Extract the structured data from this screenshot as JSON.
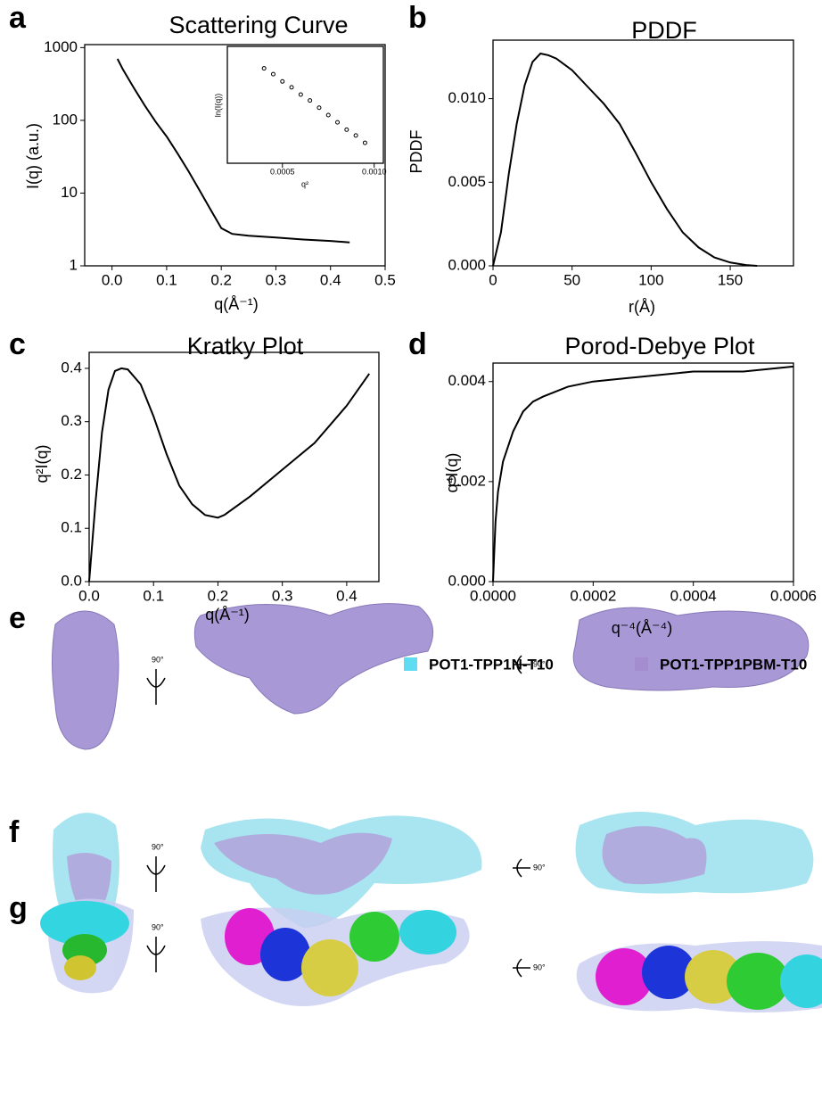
{
  "panel_labels": [
    "a",
    "b",
    "c",
    "d",
    "e",
    "f",
    "g"
  ],
  "chart_data": [
    {
      "type": "line",
      "title": "Scattering Curve",
      "x_label": "q(Å⁻¹)",
      "y_label": "I(q) (a.u.)",
      "log_y": true,
      "color": "#000000",
      "x": [
        0.01,
        0.02,
        0.04,
        0.06,
        0.08,
        0.1,
        0.12,
        0.14,
        0.16,
        0.18,
        0.2,
        0.22,
        0.25,
        0.3,
        0.35,
        0.4,
        0.435
      ],
      "values": [
        700,
        500,
        280,
        160,
        95,
        60,
        35,
        20,
        11,
        6,
        3.3,
        2.75,
        2.6,
        2.45,
        2.3,
        2.2,
        2.1
      ],
      "xlim": [
        -0.05,
        0.5
      ],
      "xticks": [
        {
          "value": 0,
          "label": "0.0"
        },
        0.1,
        0.2,
        0.3,
        0.4,
        0.5
      ],
      "ylim": [
        1,
        1100
      ],
      "yticks": [
        1,
        10,
        100,
        1000
      ],
      "inset": {
        "type": "scatter",
        "x_label": "q²",
        "y_label": "ln(I(q))",
        "x": [
          0.0004,
          0.00045,
          0.0005,
          0.00055,
          0.0006,
          0.00065,
          0.0007,
          0.00075,
          0.0008,
          0.00085,
          0.0009,
          0.00095
        ],
        "values": [
          6.55,
          6.51,
          6.46,
          6.42,
          6.37,
          6.33,
          6.28,
          6.23,
          6.18,
          6.13,
          6.09,
          6.04
        ],
        "xlim": [
          0.0002,
          0.00105
        ],
        "xticks": [
          0.0005,
          {
            "value": 0.001,
            "label": "0.0010"
          }
        ],
        "ylim": [
          5.9,
          6.7
        ]
      }
    },
    {
      "type": "line",
      "title": "PDDF",
      "x_label": "r(Å)",
      "y_label": "PDDF",
      "color": "#000000",
      "x": [
        0,
        5,
        10,
        15,
        20,
        25,
        30,
        35,
        40,
        50,
        60,
        70,
        80,
        90,
        100,
        110,
        120,
        130,
        140,
        150,
        160,
        167
      ],
      "values": [
        0,
        0.002,
        0.0055,
        0.0085,
        0.0108,
        0.0122,
        0.0127,
        0.0126,
        0.0124,
        0.0117,
        0.0107,
        0.0097,
        0.0085,
        0.0068,
        0.005,
        0.0034,
        0.002,
        0.0011,
        0.0005,
        0.0002,
        5e-05,
        0
      ],
      "xlim": [
        0,
        190
      ],
      "xticks": [
        0,
        50,
        100,
        150
      ],
      "ylim": [
        0,
        0.0135
      ],
      "yticks": [
        {
          "value": 0,
          "label": "0.000"
        },
        0.005,
        {
          "value": 0.01,
          "label": "0.010"
        }
      ]
    },
    {
      "type": "line",
      "title": "Kratky Plot",
      "x_label": "q(Å⁻¹)",
      "y_label": "q²I(q)",
      "color": "#000000",
      "x": [
        0,
        0.01,
        0.02,
        0.03,
        0.04,
        0.05,
        0.06,
        0.08,
        0.1,
        0.12,
        0.14,
        0.16,
        0.18,
        0.2,
        0.21,
        0.25,
        0.3,
        0.35,
        0.4,
        0.435
      ],
      "values": [
        0,
        0.15,
        0.28,
        0.36,
        0.395,
        0.4,
        0.398,
        0.37,
        0.31,
        0.24,
        0.18,
        0.145,
        0.125,
        0.12,
        0.125,
        0.16,
        0.21,
        0.26,
        0.33,
        0.39
      ],
      "xlim": [
        0,
        0.45
      ],
      "xticks": [
        {
          "value": 0,
          "label": "0.0"
        },
        0.1,
        0.2,
        0.3,
        0.4
      ],
      "ylim": [
        0,
        0.43
      ],
      "yticks": [
        {
          "value": 0,
          "label": "0.0"
        },
        0.1,
        0.2,
        0.3,
        0.4
      ]
    },
    {
      "type": "line",
      "title": "Porod-Debye Plot",
      "x_label": "q⁻⁴(Å⁻⁴)",
      "y_label": "q⁴I(q)",
      "color": "#000000",
      "x": [
        0,
        5e-06,
        1e-05,
        2e-05,
        4e-05,
        6e-05,
        8e-05,
        0.0001,
        0.00015,
        0.0002,
        0.00025,
        0.0003,
        0.0004,
        0.0005,
        0.0006
      ],
      "values": [
        0,
        0.0012,
        0.0018,
        0.0024,
        0.003,
        0.0034,
        0.0036,
        0.0037,
        0.0039,
        0.004,
        0.00405,
        0.0041,
        0.0042,
        0.0042,
        0.0043
      ],
      "xlim": [
        0,
        0.0006
      ],
      "xticks": [
        {
          "value": 0,
          "label": "0.0000"
        },
        0.0002,
        0.0004,
        0.0006
      ],
      "ylim": [
        0,
        0.00437
      ],
      "yticks": [
        {
          "value": 0,
          "label": "0.000"
        },
        0.002,
        0.004
      ]
    }
  ],
  "rotation_labels": [
    "90°",
    "90°",
    "90°",
    "90°",
    "90°",
    "90°"
  ],
  "legend": [
    {
      "name": "POT1-TPP1N-T10",
      "color": "#5fdcf2"
    },
    {
      "name": "POT1-TPP1PBM-T10",
      "color": "#a48dcf"
    }
  ]
}
